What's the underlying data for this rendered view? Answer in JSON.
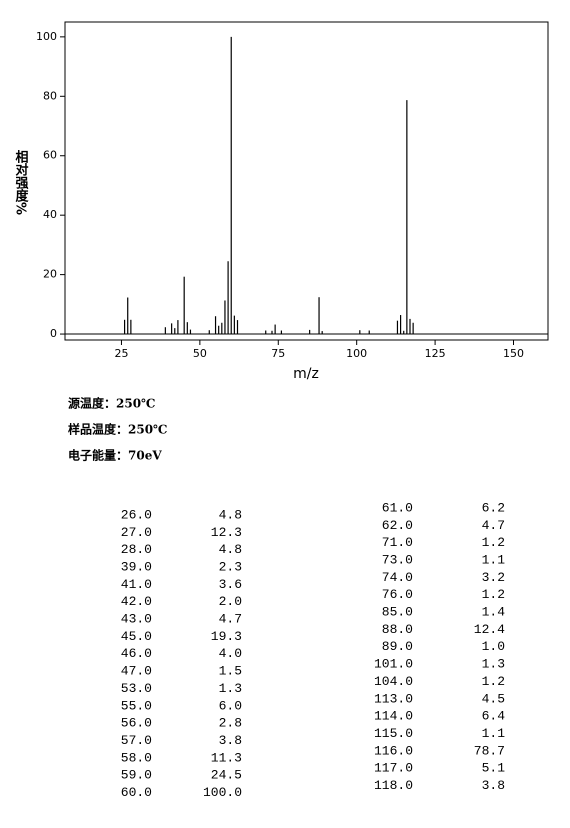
{
  "chart_data": {
    "type": "bar",
    "xlabel": "m/z",
    "ylabel": "相对强度%",
    "x": [
      26,
      27,
      28,
      39,
      41,
      42,
      43,
      45,
      46,
      47,
      53,
      55,
      56,
      57,
      58,
      59,
      60,
      61,
      62,
      71,
      73,
      74,
      76,
      85,
      88,
      89,
      101,
      104,
      113,
      114,
      115,
      116,
      117,
      118
    ],
    "values": [
      4.8,
      12.3,
      4.8,
      2.3,
      3.6,
      2.0,
      4.7,
      19.3,
      4.0,
      1.5,
      1.3,
      6.0,
      2.8,
      3.8,
      11.3,
      24.5,
      100.0,
      6.2,
      4.7,
      1.2,
      1.1,
      3.2,
      1.2,
      1.4,
      12.4,
      1.0,
      1.3,
      1.2,
      4.5,
      6.4,
      1.1,
      78.7,
      5.1,
      3.8
    ],
    "color": "#000000",
    "xlim": [
      7,
      161
    ],
    "ylim": [
      -2,
      105
    ],
    "xticks": [
      25,
      50,
      75,
      100,
      125,
      150
    ],
    "yticks": [
      0,
      20,
      40,
      60,
      80,
      100
    ]
  },
  "info": [
    "源温度：250℃",
    "样品温度：250℃",
    "电子能量：70eV"
  ],
  "table": {
    "left": [
      [
        "26.0",
        "4.8"
      ],
      [
        "27.0",
        "12.3"
      ],
      [
        "28.0",
        "4.8"
      ],
      [
        "39.0",
        "2.3"
      ],
      [
        "41.0",
        "3.6"
      ],
      [
        "42.0",
        "2.0"
      ],
      [
        "43.0",
        "4.7"
      ],
      [
        "45.0",
        "19.3"
      ],
      [
        "46.0",
        "4.0"
      ],
      [
        "47.0",
        "1.5"
      ],
      [
        "53.0",
        "1.3"
      ],
      [
        "55.0",
        "6.0"
      ],
      [
        "56.0",
        "2.8"
      ],
      [
        "57.0",
        "3.8"
      ],
      [
        "58.0",
        "11.3"
      ],
      [
        "59.0",
        "24.5"
      ],
      [
        "60.0",
        "100.0"
      ]
    ],
    "right": [
      [
        "61.0",
        "6.2"
      ],
      [
        "62.0",
        "4.7"
      ],
      [
        "71.0",
        "1.2"
      ],
      [
        "73.0",
        "1.1"
      ],
      [
        "74.0",
        "3.2"
      ],
      [
        "76.0",
        "1.2"
      ],
      [
        "85.0",
        "1.4"
      ],
      [
        "88.0",
        "12.4"
      ],
      [
        "89.0",
        "1.0"
      ],
      [
        "101.0",
        "1.3"
      ],
      [
        "104.0",
        "1.2"
      ],
      [
        "113.0",
        "4.5"
      ],
      [
        "114.0",
        "6.4"
      ],
      [
        "115.0",
        "1.1"
      ],
      [
        "116.0",
        "78.7"
      ],
      [
        "117.0",
        "5.1"
      ],
      [
        "118.0",
        "3.8"
      ]
    ]
  }
}
